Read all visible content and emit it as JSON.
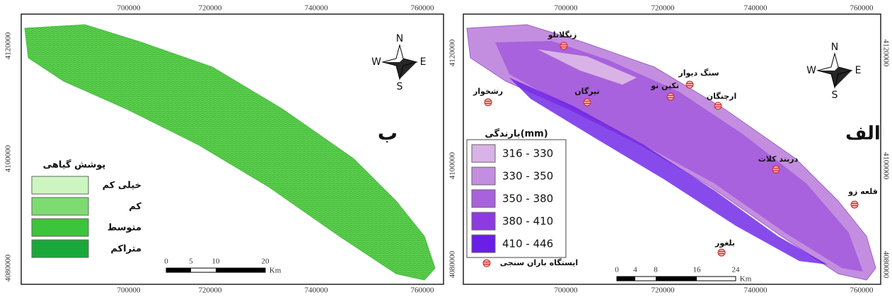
{
  "left_map": {
    "label": "ب",
    "x_ticks": [
      700000,
      720000,
      740000,
      760000
    ],
    "y_ticks": [
      4120000,
      4100000,
      4080000
    ],
    "north": {
      "n": "N",
      "e": "E",
      "s": "S",
      "w": "W"
    },
    "legend": {
      "title": "پوشش گیاهی",
      "items": [
        "خیلی کم",
        "کم",
        "متوسط",
        "متراکم"
      ]
    },
    "scale": {
      "ticks": [
        "0",
        "5",
        "10",
        "20"
      ],
      "unit": "Km"
    }
  },
  "right_map": {
    "label": "الف",
    "x_ticks": [
      700000,
      720000,
      740000,
      760000
    ],
    "y_ticks": [
      4120000,
      4100000,
      4080000
    ],
    "north": {
      "n": "N",
      "e": "E",
      "s": "S",
      "w": "W"
    },
    "legend": {
      "title": "بارندگی(mm)",
      "items": [
        "316 - 330",
        "330 - 350",
        "350 - 380",
        "380 - 410",
        "410 - 446"
      ],
      "station": "ایستگاه باران سنجی"
    },
    "stations": [
      "زنگلانلو",
      "رشخوار",
      "تیرگان",
      "سنگ دیوار",
      "تکین نو",
      "ارچنگان",
      "دربند کلات",
      "قلعه زو",
      "بلغور"
    ],
    "scale": {
      "ticks": [
        "0",
        "4",
        "8",
        "16",
        "24"
      ],
      "unit": "Km"
    }
  }
}
